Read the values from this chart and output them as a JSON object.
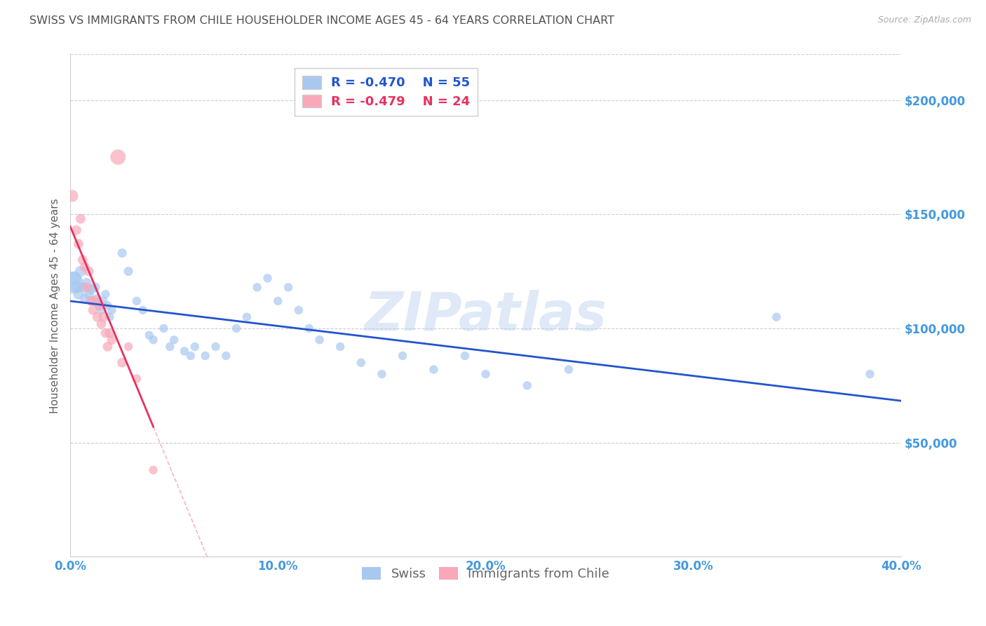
{
  "title": "SWISS VS IMMIGRANTS FROM CHILE HOUSEHOLDER INCOME AGES 45 - 64 YEARS CORRELATION CHART",
  "source": "Source: ZipAtlas.com",
  "ylabel": "Householder Income Ages 45 - 64 years",
  "xlim": [
    0.0,
    0.4
  ],
  "ylim": [
    0,
    220000
  ],
  "yticks": [
    50000,
    100000,
    150000,
    200000
  ],
  "ytick_labels": [
    "$50,000",
    "$100,000",
    "$150,000",
    "$200,000"
  ],
  "xtick_positions": [
    0.0,
    0.05,
    0.1,
    0.15,
    0.2,
    0.25,
    0.3,
    0.35,
    0.4
  ],
  "xtick_labels": [
    "0.0%",
    "",
    "10.0%",
    "",
    "20.0%",
    "",
    "30.0%",
    "",
    "40.0%"
  ],
  "swiss_color": "#a8c8f0",
  "chile_color": "#f8a8b8",
  "swiss_line_color": "#2255cc",
  "chile_line_color": "#e83060",
  "swiss_R": "-0.470",
  "swiss_N": "55",
  "chile_R": "-0.479",
  "chile_N": "24",
  "watermark": "ZIPatlas",
  "background_color": "#ffffff",
  "grid_color": "#cccccc",
  "title_color": "#505050",
  "axis_label_color": "#606060",
  "ytick_color": "#4499dd",
  "xtick_color": "#4499dd",
  "swiss_points": [
    [
      0.001,
      120000
    ],
    [
      0.002,
      122000
    ],
    [
      0.003,
      118000
    ],
    [
      0.004,
      115000
    ],
    [
      0.005,
      125000
    ],
    [
      0.006,
      118000
    ],
    [
      0.007,
      113000
    ],
    [
      0.008,
      120000
    ],
    [
      0.009,
      115000
    ],
    [
      0.01,
      117000
    ],
    [
      0.011,
      112000
    ],
    [
      0.012,
      118000
    ],
    [
      0.013,
      113000
    ],
    [
      0.014,
      110000
    ],
    [
      0.015,
      108000
    ],
    [
      0.016,
      112000
    ],
    [
      0.017,
      115000
    ],
    [
      0.018,
      110000
    ],
    [
      0.019,
      105000
    ],
    [
      0.02,
      108000
    ],
    [
      0.025,
      133000
    ],
    [
      0.028,
      125000
    ],
    [
      0.032,
      112000
    ],
    [
      0.035,
      108000
    ],
    [
      0.038,
      97000
    ],
    [
      0.04,
      95000
    ],
    [
      0.045,
      100000
    ],
    [
      0.048,
      92000
    ],
    [
      0.05,
      95000
    ],
    [
      0.055,
      90000
    ],
    [
      0.058,
      88000
    ],
    [
      0.06,
      92000
    ],
    [
      0.065,
      88000
    ],
    [
      0.07,
      92000
    ],
    [
      0.075,
      88000
    ],
    [
      0.08,
      100000
    ],
    [
      0.085,
      105000
    ],
    [
      0.09,
      118000
    ],
    [
      0.095,
      122000
    ],
    [
      0.1,
      112000
    ],
    [
      0.105,
      118000
    ],
    [
      0.11,
      108000
    ],
    [
      0.115,
      100000
    ],
    [
      0.12,
      95000
    ],
    [
      0.13,
      92000
    ],
    [
      0.14,
      85000
    ],
    [
      0.15,
      80000
    ],
    [
      0.16,
      88000
    ],
    [
      0.175,
      82000
    ],
    [
      0.19,
      88000
    ],
    [
      0.2,
      80000
    ],
    [
      0.22,
      75000
    ],
    [
      0.24,
      82000
    ],
    [
      0.34,
      105000
    ],
    [
      0.385,
      80000
    ]
  ],
  "chile_points": [
    [
      0.001,
      158000
    ],
    [
      0.003,
      143000
    ],
    [
      0.004,
      137000
    ],
    [
      0.005,
      148000
    ],
    [
      0.006,
      130000
    ],
    [
      0.007,
      127000
    ],
    [
      0.008,
      118000
    ],
    [
      0.009,
      125000
    ],
    [
      0.01,
      112000
    ],
    [
      0.011,
      108000
    ],
    [
      0.012,
      112000
    ],
    [
      0.013,
      105000
    ],
    [
      0.014,
      110000
    ],
    [
      0.015,
      102000
    ],
    [
      0.016,
      105000
    ],
    [
      0.017,
      98000
    ],
    [
      0.018,
      92000
    ],
    [
      0.019,
      98000
    ],
    [
      0.02,
      95000
    ],
    [
      0.023,
      175000
    ],
    [
      0.025,
      85000
    ],
    [
      0.028,
      92000
    ],
    [
      0.032,
      78000
    ],
    [
      0.04,
      38000
    ]
  ],
  "swiss_sizes": [
    500,
    200,
    150,
    120,
    130,
    110,
    100,
    100,
    100,
    100,
    100,
    100,
    100,
    80,
    80,
    80,
    80,
    80,
    80,
    80,
    90,
    90,
    80,
    80,
    80,
    80,
    80,
    80,
    80,
    80,
    80,
    80,
    80,
    80,
    80,
    80,
    80,
    80,
    80,
    80,
    80,
    80,
    80,
    80,
    80,
    80,
    80,
    80,
    80,
    80,
    80,
    80,
    80,
    80,
    80
  ],
  "chile_sizes": [
    150,
    100,
    100,
    100,
    100,
    100,
    100,
    100,
    100,
    100,
    100,
    100,
    100,
    100,
    100,
    100,
    100,
    100,
    100,
    250,
    100,
    80,
    80,
    80
  ]
}
